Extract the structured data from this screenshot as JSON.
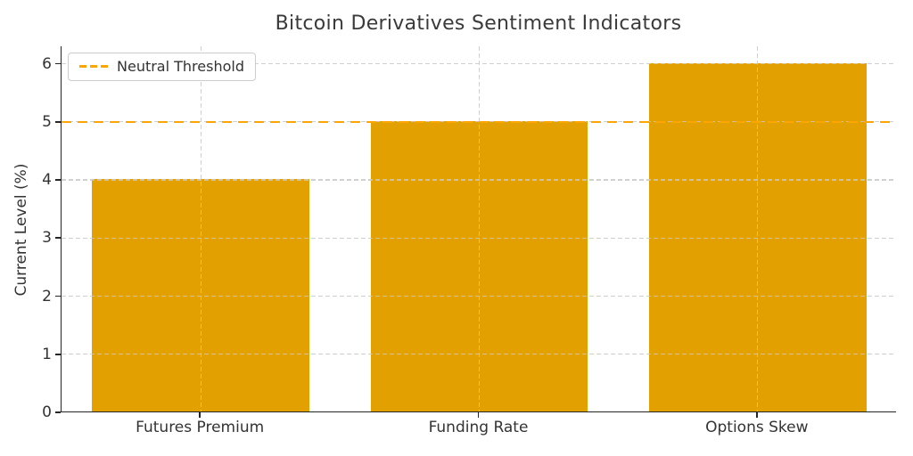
{
  "chart_data": {
    "type": "bar",
    "title": "Bitcoin Derivatives Sentiment Indicators",
    "xlabel": "",
    "ylabel": "Current Level (%)",
    "categories": [
      "Futures Premium",
      "Funding Rate",
      "Options Skew"
    ],
    "values": [
      4,
      5,
      6
    ],
    "ylim": [
      0,
      6.3
    ],
    "yticks": [
      0,
      1,
      2,
      3,
      4,
      5,
      6
    ],
    "grid": true,
    "bar_width_fraction": 0.26,
    "threshold": {
      "value": 5,
      "label": "Neutral Threshold",
      "color": "#FFA500"
    },
    "legend": {
      "position": "upper-left",
      "entries": [
        {
          "label": "Neutral Threshold",
          "style": "dashed",
          "color": "#FFA500"
        }
      ]
    },
    "colors": {
      "bar": "#E3A100",
      "grid": "#CCCCCC",
      "axis": "#262626",
      "text": "#333333",
      "title": "#3A3A3A"
    }
  }
}
